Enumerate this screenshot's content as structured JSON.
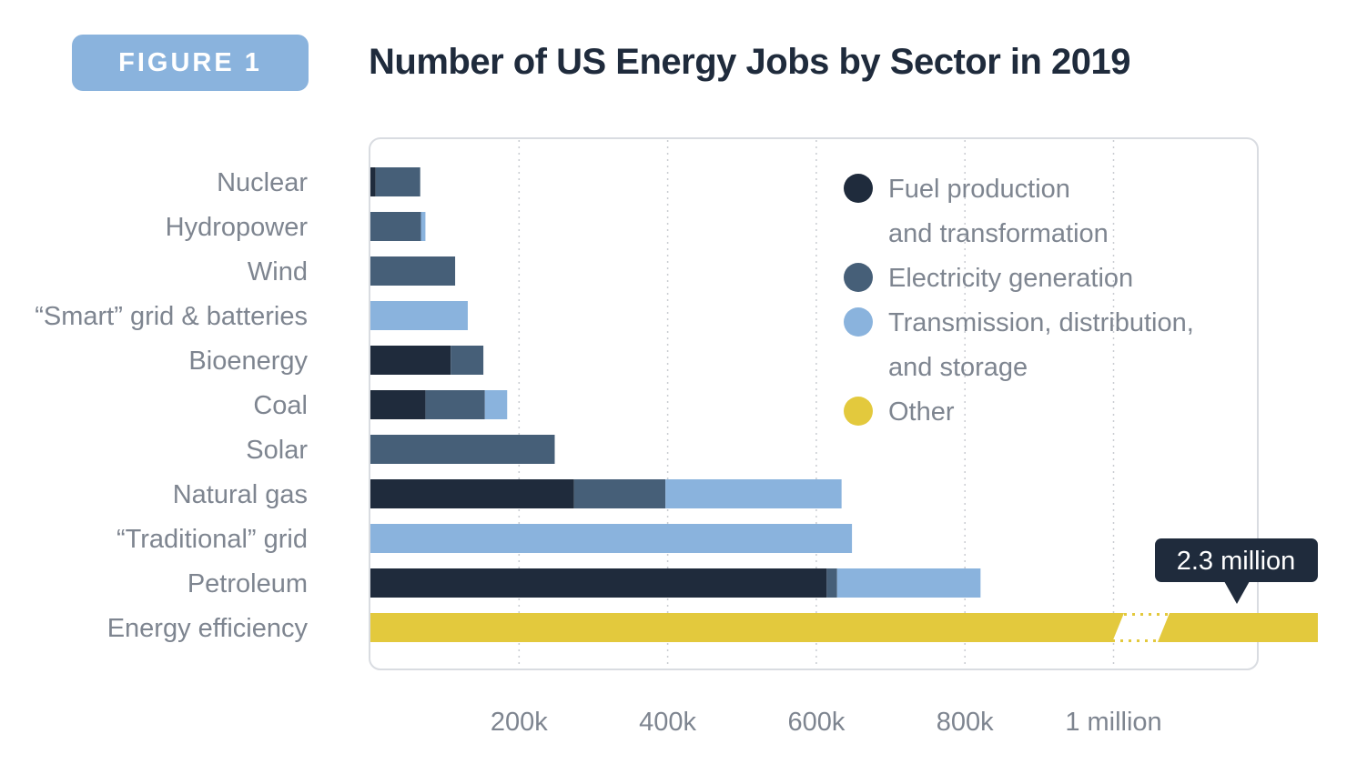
{
  "figure_badge": "FIGURE 1",
  "title": "Number of US Energy Jobs by Sector in 2019",
  "colors": {
    "badge": "#8ab3dd",
    "title": "#1f2b3c",
    "label": "#7e8590",
    "frame": "#d9dce1",
    "grid": "#c9ccd1",
    "callout_bg": "#1f2b3c",
    "callout_text": "#ffffff"
  },
  "chart_data": {
    "type": "bar",
    "orientation": "horizontal",
    "stacked": true,
    "title": "Number of US Energy Jobs by Sector in 2019",
    "categories": [
      "Nuclear",
      "Hydropower",
      "Wind",
      "“Smart” grid & batteries",
      "Bioenergy",
      "Coal",
      "Solar",
      "Natural gas",
      "“Traditional” grid",
      "Petroleum",
      "Energy efficiency"
    ],
    "series": [
      {
        "name": "Fuel production and transformation",
        "color": "#1f2b3c",
        "values": [
          7000,
          0,
          0,
          0,
          108000,
          74000,
          0,
          274000,
          0,
          614000,
          0
        ]
      },
      {
        "name": "Electricity generation",
        "color": "#465f78",
        "values": [
          60000,
          68000,
          114000,
          0,
          44000,
          80000,
          248000,
          123000,
          0,
          14000,
          0
        ]
      },
      {
        "name": "Transmission, distribution, and storage",
        "color": "#8ab3dd",
        "values": [
          0,
          6000,
          0,
          131000,
          0,
          30000,
          0,
          237000,
          648000,
          193000,
          0
        ]
      },
      {
        "name": "Other",
        "color": "#e3c93d",
        "values": [
          0,
          0,
          0,
          0,
          0,
          0,
          0,
          0,
          0,
          0,
          2300000
        ]
      }
    ],
    "xticks": [
      "200k",
      "400k",
      "600k",
      "800k",
      "1 million"
    ],
    "xtick_values": [
      200000,
      400000,
      600000,
      800000,
      1000000
    ],
    "xlim": [
      0,
      1150000
    ],
    "axis_break": {
      "after": 1000000,
      "true_total": 2300000
    },
    "callout": {
      "category": "Energy efficiency",
      "text": "2.3 million"
    },
    "grid": "vertical dotted",
    "legend_position": "top-right",
    "legend": [
      {
        "lines": [
          "Fuel production",
          "and transformation"
        ],
        "color": "#1f2b3c"
      },
      {
        "lines": [
          "Electricity generation"
        ],
        "color": "#465f78"
      },
      {
        "lines": [
          "Transmission, distribution,",
          "and storage"
        ],
        "color": "#8ab3dd"
      },
      {
        "lines": [
          "Other"
        ],
        "color": "#e3c93d"
      }
    ]
  }
}
